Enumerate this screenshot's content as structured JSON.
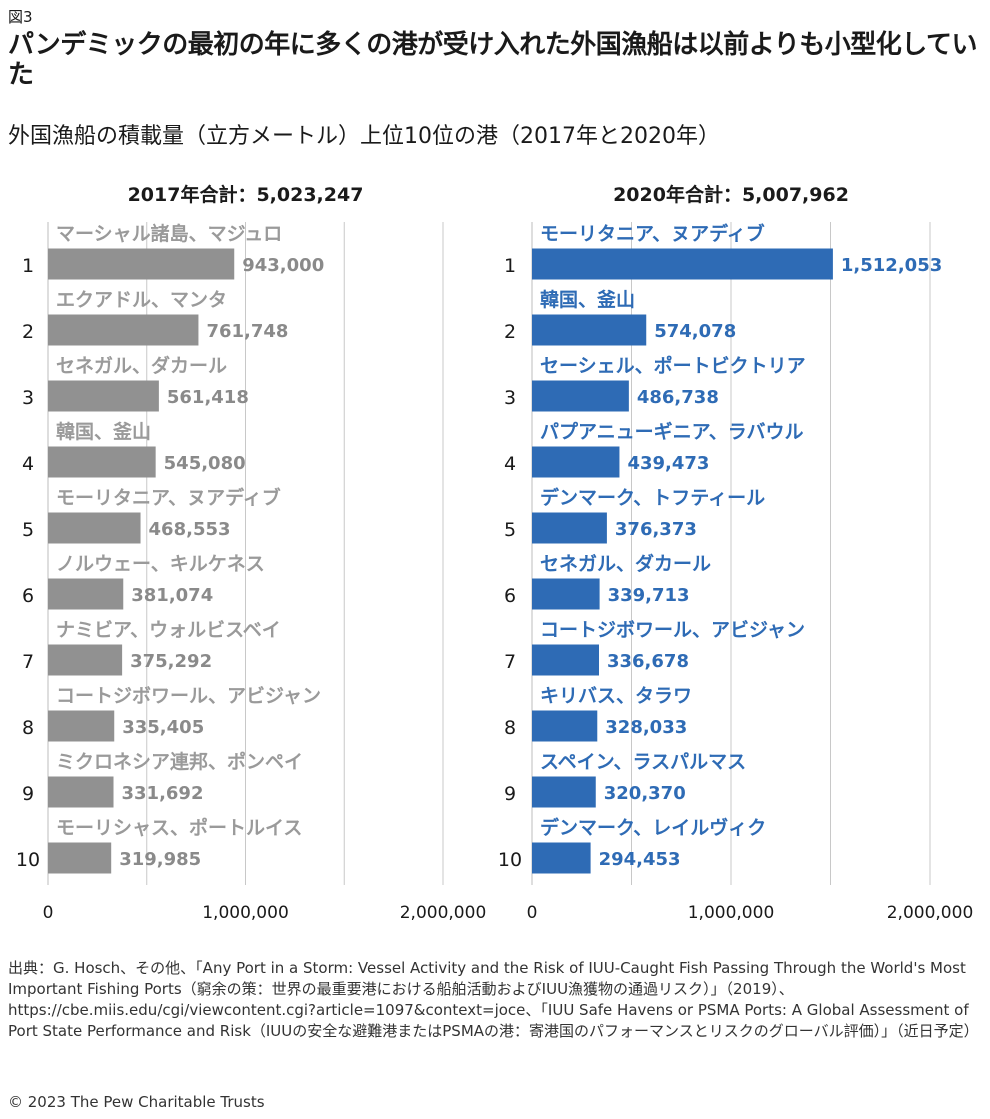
{
  "figure_label": "図3",
  "title": "パンデミックの最初の年に多くの港が受け入れた外国漁船は以前よりも小型化していた",
  "subtitle": "外国漁船の積載量（立方メートル）上位10位の港（2017年と2020年）",
  "source": "出典：G. Hosch、その他、「Any Port in a Storm: Vessel Activity and the Risk of IUU-Caught Fish Passing Through the World's Most Important Fishing Ports（窮余の策：世界の最重要港における船舶活動およびIUU漁獲物の通過リスク）」（2019）、https://cbe.miis.edu/cgi/viewcontent.cgi?article=1097&context=joce、「IUU Safe Havens or PSMA Ports: A Global Assessment of Port State Performance and Risk（IUUの安全な避難港またはPSMAの港：寄港国のパフォーマンスとリスクのグローバル評価）」（近日予定）",
  "copyright": "© 2023 The Pew Charitable Trusts",
  "colors": {
    "bar_2017": "#919191",
    "bar_2020": "#2e6bb5",
    "grid": "#c8c8c8"
  },
  "chart_data": [
    {
      "type": "bar",
      "orientation": "horizontal",
      "title": "2017年合計：5,023,247",
      "ranks": [
        "1",
        "2",
        "3",
        "4",
        "5",
        "6",
        "7",
        "8",
        "9",
        "10"
      ],
      "categories": [
        "マーシャル諸島、マジュロ",
        "エクアドル、マンタ",
        "セネガル、ダカール",
        "韓国、釜山",
        "モーリタニア、ヌアディブ",
        "ノルウェー、キルケネス",
        "ナミビア、ウォルビスベイ",
        "コートジボワール、アビジャン",
        "ミクロネシア連邦、ポンペイ",
        "モーリシャス、ポートルイス"
      ],
      "values": [
        943000,
        761748,
        561418,
        545080,
        468553,
        381074,
        375292,
        335405,
        331692,
        319985
      ],
      "value_labels": [
        "943,000",
        "761,748",
        "561,418",
        "545,080",
        "468,553",
        "381,074",
        "375,292",
        "335,405",
        "331,692",
        "319,985"
      ],
      "xlim": [
        0,
        2000000
      ],
      "xticks": [
        0,
        1000000,
        2000000
      ],
      "xtick_labels": [
        "0",
        "1,000,000",
        "2,000,000"
      ],
      "grid": true
    },
    {
      "type": "bar",
      "orientation": "horizontal",
      "title": "2020年合計：5,007,962",
      "ranks": [
        "1",
        "2",
        "3",
        "4",
        "5",
        "6",
        "7",
        "8",
        "9",
        "10"
      ],
      "categories": [
        "モーリタニア、ヌアディブ",
        "韓国、釜山",
        "セーシェル、ポートビクトリア",
        "パプアニューギニア、ラバウル",
        "デンマーク、トフティール",
        "セネガル、ダカール",
        "コートジボワール、アビジャン",
        "キリバス、タラワ",
        "スペイン、ラスパルマス",
        "デンマーク、レイルヴィク"
      ],
      "values": [
        1512053,
        574078,
        486738,
        439473,
        376373,
        339713,
        336678,
        328033,
        320370,
        294453
      ],
      "value_labels": [
        "1,512,053",
        "574,078",
        "486,738",
        "439,473",
        "376,373",
        "339,713",
        "336,678",
        "328,033",
        "320,370",
        "294,453"
      ],
      "xlim": [
        0,
        2000000
      ],
      "xticks": [
        0,
        1000000,
        2000000
      ],
      "xtick_labels": [
        "0",
        "1,000,000",
        "2,000,000"
      ],
      "grid": true
    }
  ]
}
